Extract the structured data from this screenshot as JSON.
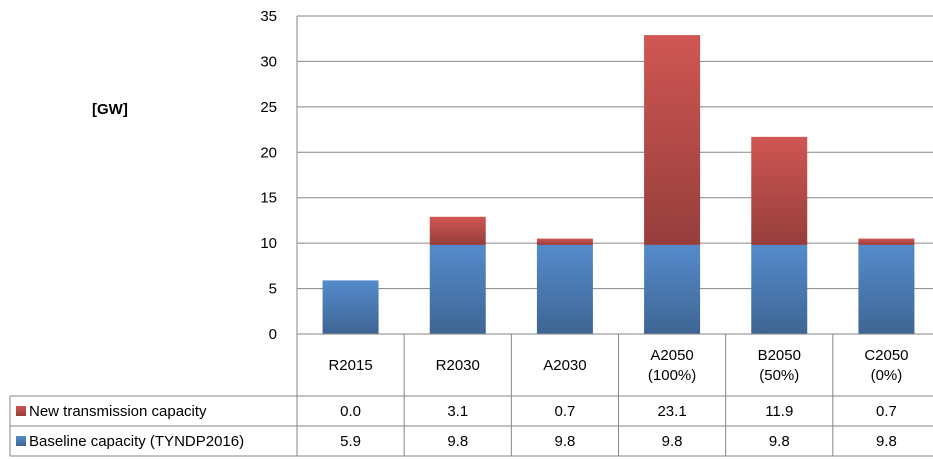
{
  "unit_label": "[GW]",
  "colors": {
    "new_transmission": "#c0504d",
    "baseline": "#4f81bd",
    "grid": "#868686",
    "table_border": "#868686"
  },
  "chart_data": {
    "type": "bar",
    "stacked": true,
    "categories": [
      [
        "R2015"
      ],
      [
        "R2030"
      ],
      [
        "A2030"
      ],
      [
        "A2050",
        "(100%)"
      ],
      [
        "B2050",
        "(50%)"
      ],
      [
        "C2050",
        "(0%)"
      ]
    ],
    "series": [
      {
        "name": "Baseline capacity (TYNDP2016)",
        "color": "#4f81bd",
        "values": [
          5.9,
          9.8,
          9.8,
          9.8,
          9.8,
          9.8
        ],
        "labels": [
          "5.9",
          "9.8",
          "9.8",
          "9.8",
          "9.8",
          "9.8"
        ]
      },
      {
        "name": "New transmission capacity",
        "color": "#c0504d",
        "values": [
          0.0,
          3.1,
          0.7,
          23.1,
          11.9,
          0.7
        ],
        "labels": [
          "0.0",
          "3.1",
          "0.7",
          "23.1",
          "11.9",
          "0.7"
        ]
      }
    ],
    "table_row_order": [
      "New transmission capacity",
      "Baseline capacity (TYNDP2016)"
    ],
    "ylim": [
      0,
      35
    ],
    "yticks": [
      0,
      5,
      10,
      15,
      20,
      25,
      30,
      35
    ],
    "grid": true,
    "legend": "data-table"
  }
}
